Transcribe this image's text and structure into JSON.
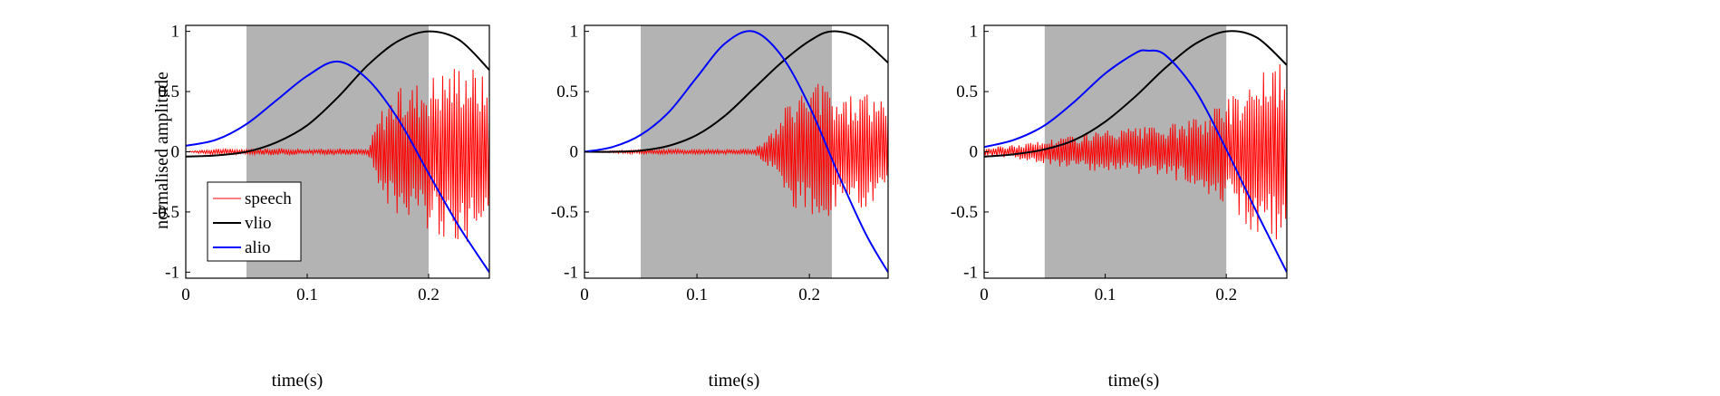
{
  "figure": {
    "background": "#ffffff",
    "shade_color": "#b3b3b3"
  },
  "chart_data": [
    {
      "type": "line",
      "xlim": [
        0,
        0.25
      ],
      "ylim": [
        -1.05,
        1.05
      ],
      "xticks": [
        0,
        0.1,
        0.2
      ],
      "xtick_labels": [
        "0",
        "0.1",
        "0.2"
      ],
      "yticks": [
        -1,
        -0.5,
        0,
        0.5,
        1
      ],
      "ytick_labels": [
        "-1",
        "-0.5",
        "0",
        "0.5",
        "1"
      ],
      "xlabel": "time(s)",
      "ylabel": "normalised amplitude",
      "shaded_interval": [
        0.05,
        0.2
      ],
      "legend": {
        "placement": "bottom-left",
        "entries": [
          "speech",
          "vlio",
          "alio"
        ]
      },
      "series": [
        {
          "name": "vlio",
          "color": "#000000",
          "x": [
            0,
            0.025,
            0.05,
            0.075,
            0.1,
            0.125,
            0.15,
            0.175,
            0.2,
            0.225,
            0.25
          ],
          "y": [
            -0.04,
            -0.03,
            0.0,
            0.08,
            0.22,
            0.45,
            0.72,
            0.92,
            1.0,
            0.93,
            0.68
          ]
        },
        {
          "name": "alio",
          "color": "#0000ff",
          "x": [
            0,
            0.025,
            0.05,
            0.075,
            0.1,
            0.125,
            0.15,
            0.175,
            0.2,
            0.225,
            0.25
          ],
          "y": [
            0.05,
            0.1,
            0.23,
            0.43,
            0.63,
            0.75,
            0.6,
            0.27,
            -0.18,
            -0.62,
            -1.0
          ]
        },
        {
          "name": "speech",
          "color": "#ff0000",
          "x": [
            0,
            0.025,
            0.05,
            0.075,
            0.1,
            0.125,
            0.15,
            0.16,
            0.17,
            0.18,
            0.19,
            0.2,
            0.21,
            0.22,
            0.23,
            0.24,
            0.25
          ],
          "y": [
            0.0,
            0.03,
            0.02,
            0.03,
            0.02,
            0.03,
            0.02,
            0.35,
            0.5,
            0.55,
            0.6,
            0.65,
            0.7,
            0.75,
            0.8,
            0.7,
            0.6
          ]
        }
      ]
    },
    {
      "type": "line",
      "xlim": [
        0,
        0.27
      ],
      "ylim": [
        -1.05,
        1.05
      ],
      "xticks": [
        0,
        0.1,
        0.2
      ],
      "xtick_labels": [
        "0",
        "0.1",
        "0.2"
      ],
      "yticks": [
        -1,
        -0.5,
        0,
        0.5,
        1
      ],
      "ytick_labels": [
        "-1",
        "-0.5",
        "0",
        "0.5",
        "1"
      ],
      "xlabel": "time(s)",
      "ylabel": "",
      "shaded_interval": [
        0.05,
        0.22
      ],
      "series": [
        {
          "name": "vlio",
          "color": "#000000",
          "x": [
            0,
            0.025,
            0.05,
            0.075,
            0.1,
            0.125,
            0.15,
            0.175,
            0.2,
            0.22,
            0.245,
            0.27
          ],
          "y": [
            0.0,
            0.0,
            0.01,
            0.05,
            0.14,
            0.3,
            0.52,
            0.74,
            0.92,
            1.0,
            0.94,
            0.74
          ]
        },
        {
          "name": "alio",
          "color": "#0000ff",
          "x": [
            0,
            0.025,
            0.05,
            0.075,
            0.1,
            0.125,
            0.15,
            0.175,
            0.2,
            0.225,
            0.25,
            0.27
          ],
          "y": [
            0.0,
            0.04,
            0.14,
            0.33,
            0.62,
            0.9,
            1.0,
            0.8,
            0.38,
            -0.17,
            -0.68,
            -1.0
          ]
        },
        {
          "name": "speech",
          "color": "#ff0000",
          "x": [
            0,
            0.05,
            0.1,
            0.15,
            0.17,
            0.18,
            0.19,
            0.2,
            0.21,
            0.22,
            0.23,
            0.24,
            0.25,
            0.26,
            0.27
          ],
          "y": [
            0.0,
            0.02,
            0.02,
            0.02,
            0.2,
            0.4,
            0.5,
            0.55,
            0.6,
            0.55,
            0.45,
            0.5,
            0.55,
            0.45,
            0.4
          ]
        }
      ]
    },
    {
      "type": "line",
      "xlim": [
        0,
        0.25
      ],
      "ylim": [
        -1.05,
        1.05
      ],
      "xticks": [
        0,
        0.1,
        0.2
      ],
      "xtick_labels": [
        "0",
        "0.1",
        "0.2"
      ],
      "yticks": [
        -1,
        -0.5,
        0,
        0.5,
        1
      ],
      "ytick_labels": [
        "-1",
        "-0.5",
        "0",
        "0.5",
        "1"
      ],
      "xlabel": "time(s)",
      "ylabel": "",
      "shaded_interval": [
        0.05,
        0.2
      ],
      "series": [
        {
          "name": "vlio",
          "color": "#000000",
          "x": [
            0,
            0.025,
            0.05,
            0.075,
            0.1,
            0.125,
            0.15,
            0.175,
            0.2,
            0.225,
            0.25
          ],
          "y": [
            -0.04,
            -0.02,
            0.02,
            0.1,
            0.25,
            0.46,
            0.7,
            0.9,
            1.0,
            0.95,
            0.72
          ]
        },
        {
          "name": "alio",
          "color": "#0000ff",
          "x": [
            0,
            0.025,
            0.05,
            0.075,
            0.1,
            0.125,
            0.135,
            0.15,
            0.175,
            0.2,
            0.225,
            0.25
          ],
          "y": [
            0.04,
            0.1,
            0.22,
            0.42,
            0.65,
            0.82,
            0.84,
            0.8,
            0.5,
            0.02,
            -0.5,
            -1.0
          ]
        },
        {
          "name": "speech",
          "color": "#ff0000",
          "x": [
            0,
            0.025,
            0.05,
            0.075,
            0.1,
            0.125,
            0.15,
            0.175,
            0.2,
            0.21,
            0.22,
            0.23,
            0.24,
            0.25
          ],
          "y": [
            0.03,
            0.06,
            0.1,
            0.15,
            0.18,
            0.2,
            0.22,
            0.28,
            0.45,
            0.55,
            0.65,
            0.7,
            0.75,
            0.7
          ]
        }
      ]
    }
  ]
}
